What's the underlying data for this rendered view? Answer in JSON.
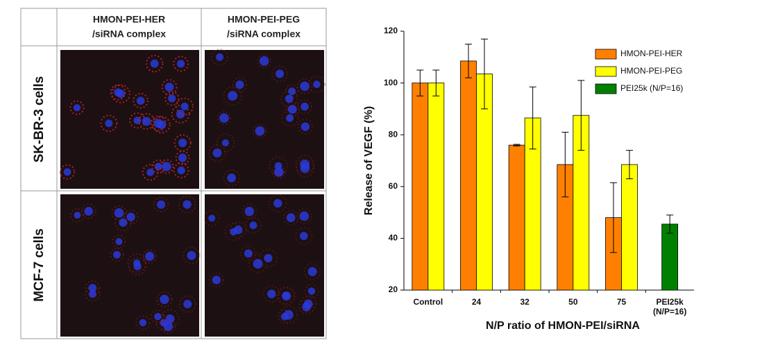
{
  "image_grid": {
    "column_headers": [
      [
        "HMON-PEI-HER",
        "/siRNA complex"
      ],
      [
        "HMON-PEI-PEG",
        "/siRNA complex"
      ]
    ],
    "row_headers": [
      "SK-BR-3 cells",
      "MCF-7 cells"
    ]
  },
  "chart_data": {
    "type": "bar",
    "xlabel": "N/P ratio of HMON-PEI/siRNA",
    "ylabel": "Release of VEGF (%)",
    "categories": [
      "Control",
      "24",
      "32",
      "50",
      "75",
      "PEI25k (N/P=16)"
    ],
    "series": [
      {
        "name": "HMON-PEI-HER",
        "color": "#ff8000",
        "values": [
          100,
          108.5,
          76,
          68.5,
          48,
          null
        ],
        "errors": [
          5,
          6.5,
          0.3,
          12.5,
          13.5,
          null
        ]
      },
      {
        "name": "HMON-PEI-PEG",
        "color": "#ffff00",
        "values": [
          100,
          103.5,
          86.5,
          87.5,
          68.5,
          null
        ],
        "errors": [
          5,
          13.5,
          12,
          13.5,
          5.5,
          null
        ]
      },
      {
        "name": "PEI25k (N/P=16)",
        "color": "#008000",
        "values": [
          null,
          null,
          null,
          null,
          null,
          45.5
        ],
        "errors": [
          null,
          null,
          null,
          null,
          null,
          3.5
        ]
      }
    ],
    "ylim": [
      20,
      120
    ],
    "yticks": [
      20,
      40,
      60,
      80,
      100,
      120
    ],
    "legend": "upper-right"
  }
}
